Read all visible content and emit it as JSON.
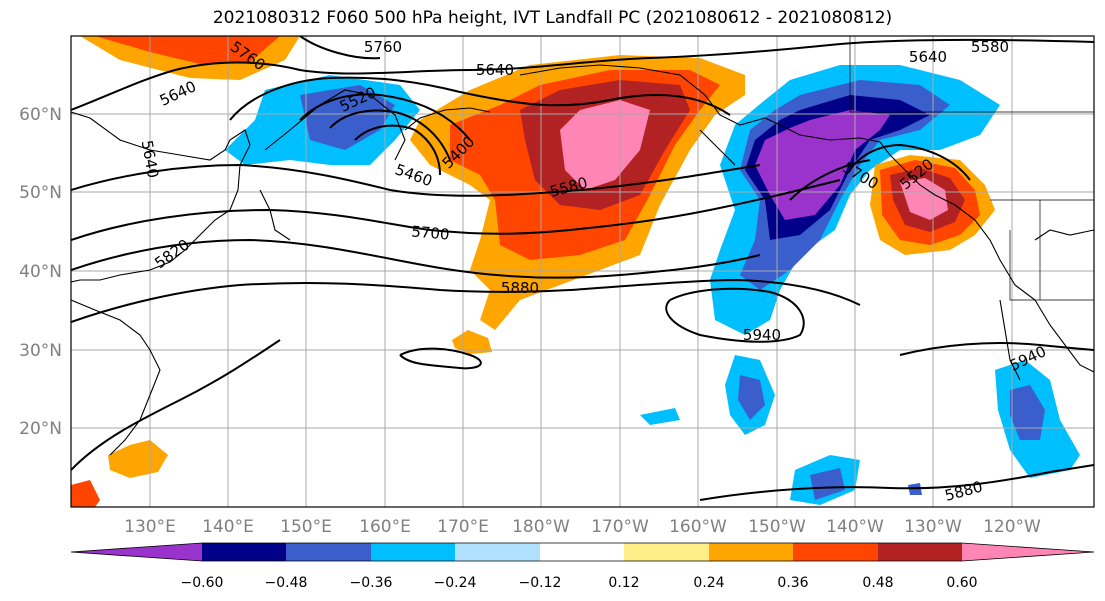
{
  "title": "2021080312 F060 500 hPa height, IVT Landfall PC (2021080612 - 2021080812)",
  "map": {
    "lat_labels": [
      "60°N",
      "50°N",
      "40°N",
      "30°N",
      "20°N"
    ],
    "lon_labels": [
      "130°E",
      "140°E",
      "150°E",
      "160°E",
      "170°E",
      "180°W",
      "170°W",
      "160°W",
      "150°W",
      "140°W",
      "130°W",
      "120°W"
    ],
    "contour_labels": [
      "5760",
      "5640",
      "5580",
      "5640",
      "5520",
      "5400",
      "5460",
      "5580",
      "5700",
      "5820",
      "5880",
      "5940",
      "5760",
      "5640",
      "5940",
      "5880",
      "5640",
      "5520",
      "5700"
    ]
  },
  "colorbar": {
    "tick_labels": [
      "−0.60",
      "−0.48",
      "−0.36",
      "−0.24",
      "−0.12",
      "0.12",
      "0.24",
      "0.36",
      "0.48",
      "0.60"
    ],
    "colors": [
      "#9933cc",
      "#000088",
      "#3a5fcd",
      "#00bfff",
      "#b0e2ff",
      "#ffffff",
      "#ffee88",
      "#ffa500",
      "#ff4500",
      "#b22222",
      "#ff85b5"
    ]
  }
}
